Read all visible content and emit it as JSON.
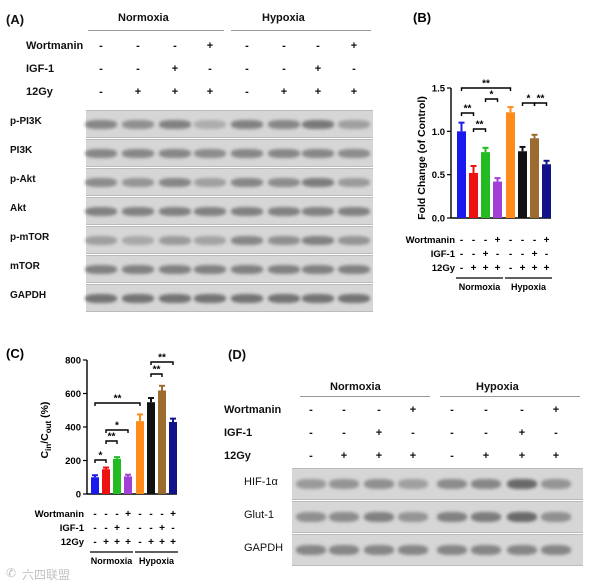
{
  "panelA": {
    "label": "(A)",
    "groups": [
      "Normoxia",
      "Hypoxia"
    ],
    "treatments": [
      {
        "name": "Wortmanin",
        "signs": [
          "-",
          "-",
          "-",
          "+",
          "-",
          "-",
          "-",
          "+"
        ]
      },
      {
        "name": "IGF-1",
        "signs": [
          "-",
          "-",
          "+",
          "-",
          "-",
          "-",
          "+",
          "-"
        ]
      },
      {
        "name": "12Gy",
        "signs": [
          "-",
          "+",
          "+",
          "+",
          "-",
          "+",
          "+",
          "+"
        ]
      }
    ],
    "blots": [
      {
        "name": "p-PI3K",
        "intensity": [
          0.55,
          0.45,
          0.6,
          0.15,
          0.6,
          0.55,
          0.7,
          0.3
        ]
      },
      {
        "name": "PI3K",
        "intensity": [
          0.55,
          0.55,
          0.55,
          0.5,
          0.55,
          0.55,
          0.55,
          0.5
        ]
      },
      {
        "name": "p-Akt",
        "intensity": [
          0.5,
          0.4,
          0.55,
          0.3,
          0.55,
          0.5,
          0.65,
          0.35
        ]
      },
      {
        "name": "Akt",
        "intensity": [
          0.6,
          0.6,
          0.6,
          0.6,
          0.6,
          0.6,
          0.6,
          0.6
        ]
      },
      {
        "name": "p-mTOR",
        "intensity": [
          0.3,
          0.2,
          0.35,
          0.25,
          0.55,
          0.45,
          0.6,
          0.4
        ]
      },
      {
        "name": "mTOR",
        "intensity": [
          0.6,
          0.6,
          0.6,
          0.6,
          0.6,
          0.6,
          0.6,
          0.6
        ]
      },
      {
        "name": "GAPDH",
        "intensity": [
          0.75,
          0.75,
          0.75,
          0.75,
          0.75,
          0.75,
          0.75,
          0.75
        ]
      }
    ]
  },
  "panelD": {
    "label": "(D)",
    "groups": [
      "Normoxia",
      "Hypoxia"
    ],
    "treatments": [
      {
        "name": "Wortmanin",
        "signs": [
          "-",
          "-",
          "-",
          "+",
          "-",
          "-",
          "-",
          "+"
        ]
      },
      {
        "name": "IGF-1",
        "signs": [
          "-",
          "-",
          "+",
          "-",
          "-",
          "-",
          "+",
          "-"
        ]
      },
      {
        "name": "12Gy",
        "signs": [
          "-",
          "+",
          "+",
          "+",
          "-",
          "+",
          "+",
          "+"
        ]
      }
    ],
    "blots": [
      {
        "name": "HIF-1α",
        "intensity": [
          0.35,
          0.4,
          0.45,
          0.3,
          0.5,
          0.55,
          0.85,
          0.4
        ]
      },
      {
        "name": "Glut-1",
        "intensity": [
          0.45,
          0.5,
          0.6,
          0.4,
          0.6,
          0.65,
          0.85,
          0.45
        ]
      },
      {
        "name": "GAPDH",
        "intensity": [
          0.55,
          0.55,
          0.55,
          0.55,
          0.55,
          0.55,
          0.55,
          0.55
        ]
      }
    ]
  },
  "chart_data": [
    {
      "type": "bar",
      "panel": "(B)",
      "ylabel": "Fold Change (of Control)",
      "ylim": [
        0,
        1.5
      ],
      "yticks": [
        "0.0",
        "0.5",
        "1.0",
        "1.5"
      ],
      "values": [
        1.0,
        0.52,
        0.76,
        0.42,
        1.22,
        0.77,
        0.92,
        0.62
      ],
      "errors": [
        0.1,
        0.08,
        0.05,
        0.04,
        0.06,
        0.05,
        0.04,
        0.04
      ],
      "colors": [
        "#1a1aee",
        "#ee1111",
        "#22bb22",
        "#a23fd6",
        "#ff8c1a",
        "#111111",
        "#9c6b30",
        "#12128a"
      ],
      "groups": [
        "Normoxia",
        "Hypoxia"
      ],
      "treatments": [
        {
          "name": "Wortmanin",
          "signs": [
            "-",
            "-",
            "-",
            "+",
            "-",
            "-",
            "-",
            "+"
          ]
        },
        {
          "name": "IGF-1",
          "signs": [
            "-",
            "-",
            "+",
            "-",
            "-",
            "-",
            "+",
            "-"
          ]
        },
        {
          "name": "12Gy",
          "signs": [
            "-",
            "+",
            "+",
            "+",
            "-",
            "+",
            "+",
            "+"
          ]
        }
      ],
      "annotations": [
        {
          "from": 0,
          "to": 1,
          "text": "**"
        },
        {
          "from": 1,
          "to": 2,
          "text": "**"
        },
        {
          "from": 2,
          "to": 3,
          "text": "*"
        },
        {
          "from": 0,
          "to": 4,
          "text": "**"
        },
        {
          "from": 5,
          "to": 6,
          "text": "*"
        },
        {
          "from": 6,
          "to": 7,
          "text": "**"
        }
      ]
    },
    {
      "type": "bar",
      "panel": "(C)",
      "ylabel_parts": [
        "C",
        "in",
        "/C",
        "out",
        " (%)"
      ],
      "ylim": [
        0,
        800
      ],
      "yticks": [
        "0",
        "200",
        "400",
        "600",
        "800"
      ],
      "values": [
        100,
        148,
        210,
        105,
        435,
        548,
        618,
        430
      ],
      "errors": [
        12,
        10,
        10,
        10,
        40,
        25,
        28,
        20
      ],
      "colors": [
        "#1a1aee",
        "#ee1111",
        "#22bb22",
        "#a23fd6",
        "#ff8c1a",
        "#111111",
        "#9c6b30",
        "#12128a"
      ],
      "groups": [
        "Normoxia",
        "Hypoxia"
      ],
      "treatments": [
        {
          "name": "Wortmanin",
          "signs": [
            "-",
            "-",
            "-",
            "+",
            "-",
            "-",
            "-",
            "+"
          ]
        },
        {
          "name": "IGF-1",
          "signs": [
            "-",
            "-",
            "+",
            "-",
            "-",
            "-",
            "+",
            "-"
          ]
        },
        {
          "name": "12Gy",
          "signs": [
            "-",
            "+",
            "+",
            "+",
            "-",
            "+",
            "+",
            "+"
          ]
        }
      ],
      "annotations": [
        {
          "from": 0,
          "to": 1,
          "text": "*"
        },
        {
          "from": 1,
          "to": 2,
          "text": "**"
        },
        {
          "from": 1,
          "to": 3,
          "text": "*"
        },
        {
          "from": 0,
          "to": 4,
          "text": "**"
        },
        {
          "from": 5,
          "to": 6,
          "text": "**"
        },
        {
          "from": 5,
          "to": 7,
          "text": "**"
        }
      ]
    }
  ],
  "watermark": "六四联盟"
}
